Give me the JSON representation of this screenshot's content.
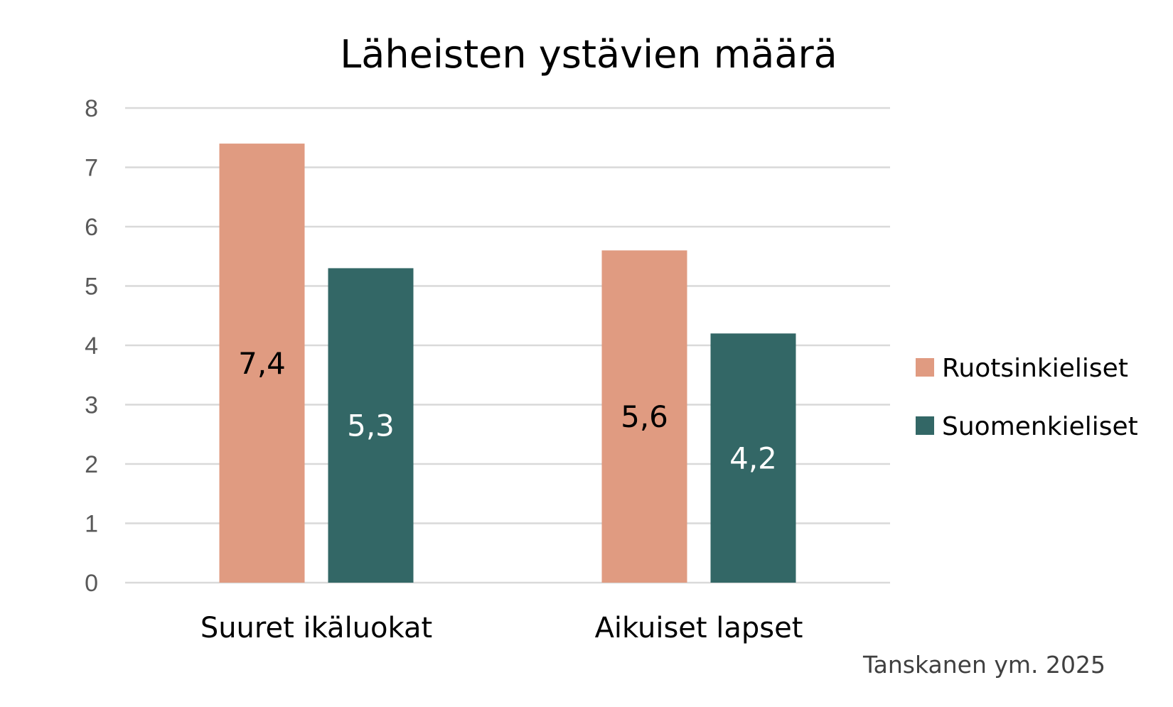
{
  "chart_data": {
    "type": "bar",
    "title": "Läheisten ystävien määrä",
    "xlabel": "",
    "ylabel": "",
    "categories": [
      "Suuret ikäluokat",
      "Aikuiset lapset"
    ],
    "series": [
      {
        "name": "Ruotsinkieliset",
        "values": [
          7.4,
          5.6
        ],
        "labels": [
          "7,4",
          "5,6"
        ],
        "color": "#e09b81",
        "label_color": "#000000"
      },
      {
        "name": "Suomenkieliset",
        "values": [
          5.3,
          4.2
        ],
        "labels": [
          "5,3",
          "4,2"
        ],
        "color": "#336766",
        "label_color": "#ffffff"
      }
    ],
    "ylim": [
      0,
      8
    ],
    "yticks": [
      "0",
      "1",
      "2",
      "3",
      "4",
      "5",
      "6",
      "7",
      "8"
    ],
    "grid": true,
    "gridline_color": "#d9d9d9",
    "legend_position": "right"
  },
  "source_note": "Tanskanen ym. 2025"
}
